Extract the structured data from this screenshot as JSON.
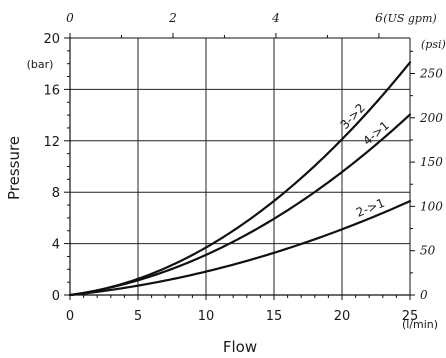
{
  "chart_data": {
    "type": "line",
    "xlabel": "Flow",
    "ylabel": "Pressure",
    "x_unit": "(l/min)",
    "y_unit": "(bar)",
    "x_secondary_unit": "(US gpm)",
    "y_secondary_unit": "(psi)",
    "xlim": [
      0,
      25
    ],
    "ylim": [
      0,
      20
    ],
    "x_ticks": [
      "0",
      "5",
      "10",
      "15",
      "20",
      "25"
    ],
    "y_ticks": [
      "0",
      "4",
      "8",
      "12",
      "16",
      "20"
    ],
    "x_secondary_ticks": [
      {
        "label": "0",
        "value": 0
      },
      {
        "label": "2",
        "value": 2
      },
      {
        "label": "4",
        "value": 4
      },
      {
        "label": "6",
        "value": 6
      }
    ],
    "y_secondary_ticks": [
      {
        "label": "0",
        "value": 0
      },
      {
        "label": "50",
        "value": 50
      },
      {
        "label": "100",
        "value": 100
      },
      {
        "label": "150",
        "value": 150
      },
      {
        "label": "200",
        "value": 200
      },
      {
        "label": "250",
        "value": 250
      }
    ],
    "grid": true,
    "series": [
      {
        "name": "3->2",
        "x": [
          0,
          5,
          10,
          15,
          20,
          25
        ],
        "y": [
          0,
          1.1,
          3.7,
          7.3,
          12.3,
          18.0
        ]
      },
      {
        "name": "4->1",
        "x": [
          0,
          5,
          10,
          15,
          20,
          25
        ],
        "y": [
          0,
          0.9,
          3.2,
          6.0,
          9.6,
          14.0
        ]
      },
      {
        "name": "2->1",
        "x": [
          0,
          5,
          10,
          15,
          20,
          25
        ],
        "y": [
          0,
          0.6,
          1.9,
          3.3,
          5.1,
          7.3
        ]
      }
    ]
  }
}
